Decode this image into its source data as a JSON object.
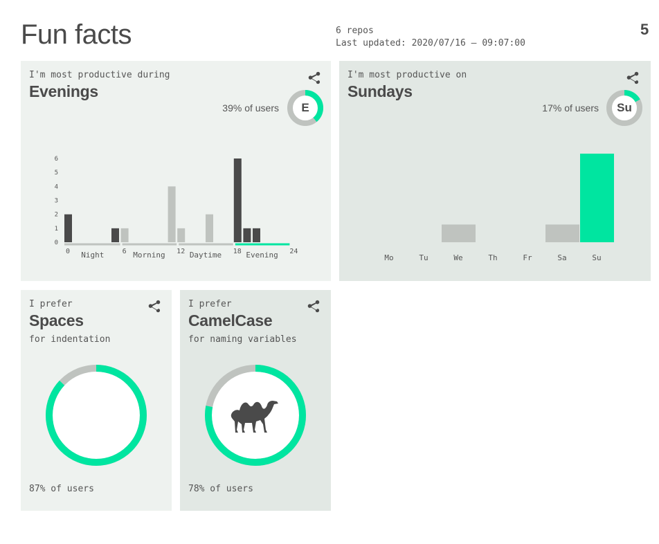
{
  "header": {
    "title": "Fun facts",
    "repos": "6 repos",
    "last_updated": "Last updated: 2020/07/16 – 09:07:00",
    "page_number": "5"
  },
  "colors": {
    "accent": "#00e5a0",
    "dark_bar": "#4a4a4a",
    "light_bar": "#bfc3bf",
    "card_light": "#eef2ef",
    "card_dark": "#e2e8e4"
  },
  "cards": {
    "hours": {
      "pre": "I'm most productive during",
      "headline": "Evenings",
      "percent": "39% of users",
      "badge": "E",
      "share_icon": "share-icon"
    },
    "days": {
      "pre": "I'm most productive on",
      "headline": "Sundays",
      "percent": "17% of users",
      "badge": "Su",
      "share_icon": "share-icon"
    },
    "spaces": {
      "pre": "I prefer",
      "headline": "Spaces",
      "sub": "for indentation",
      "percent": "87% of users",
      "share_icon": "share-icon"
    },
    "camel": {
      "pre": "I prefer",
      "headline": "CamelCase",
      "sub": "for naming variables",
      "percent": "78% of users",
      "share_icon": "share-icon",
      "icon": "camel-icon"
    }
  },
  "chart_data": [
    {
      "type": "bar",
      "ylim": [
        0,
        6
      ],
      "yticks": [
        "0",
        "1",
        "2",
        "3",
        "4",
        "5",
        "6"
      ],
      "xticks": [
        "0",
        "6",
        "12",
        "18",
        "24"
      ],
      "periods": [
        {
          "name": "Night",
          "range": [
            0,
            6
          ]
        },
        {
          "name": "Morning",
          "range": [
            6,
            12
          ]
        },
        {
          "name": "Daytime",
          "range": [
            12,
            18
          ]
        },
        {
          "name": "Evening",
          "range": [
            18,
            24
          ]
        }
      ],
      "highlight_period": "Evening",
      "bars": [
        {
          "hour": 0,
          "value": 2,
          "shade": "dark"
        },
        {
          "hour": 5,
          "value": 1,
          "shade": "dark"
        },
        {
          "hour": 6,
          "value": 1,
          "shade": "light"
        },
        {
          "hour": 11,
          "value": 4,
          "shade": "light"
        },
        {
          "hour": 12,
          "value": 1,
          "shade": "light"
        },
        {
          "hour": 15,
          "value": 2,
          "shade": "light"
        },
        {
          "hour": 18,
          "value": 6,
          "shade": "dark"
        },
        {
          "hour": 19,
          "value": 1,
          "shade": "dark"
        },
        {
          "hour": 20,
          "value": 1,
          "shade": "dark"
        }
      ]
    },
    {
      "type": "bar",
      "categories": [
        "Mo",
        "Tu",
        "We",
        "Th",
        "Fr",
        "Sa",
        "Su"
      ],
      "values": [
        0,
        0,
        1,
        0,
        0,
        1,
        5
      ],
      "highlight": "Su"
    }
  ],
  "donuts": {
    "hours_badge": 0.39,
    "days_badge": 0.17,
    "spaces": 0.87,
    "camel": 0.78
  }
}
